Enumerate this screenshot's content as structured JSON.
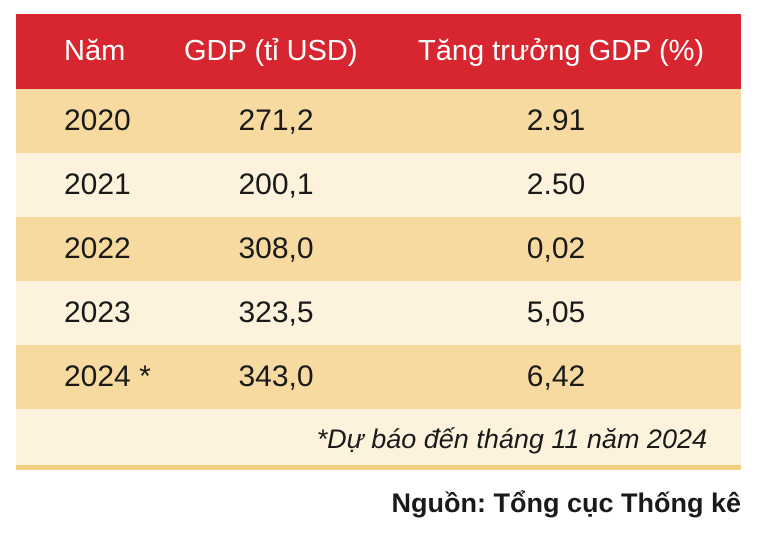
{
  "chart_data": {
    "type": "table",
    "columns": [
      "Năm",
      "GDP (tỉ USD)",
      "Tăng trưởng GDP (%)"
    ],
    "rows": [
      [
        "2020",
        "271,2",
        "2.91"
      ],
      [
        "2021",
        "200,1",
        "2.50"
      ],
      [
        "2022",
        "308,0",
        "0,02"
      ],
      [
        "2023",
        "323,5",
        "5,05"
      ],
      [
        "2024 *",
        "343,0",
        "6,42"
      ]
    ],
    "note": "*Dự báo đến tháng 11 năm 2024",
    "source": "Nguồn: Tổng cục Thống kê"
  },
  "colors": {
    "header_bg": "#d7262f",
    "row_dark": "#f6daa0",
    "row_light": "#fdf3dc",
    "text": "#1a1a1a"
  }
}
